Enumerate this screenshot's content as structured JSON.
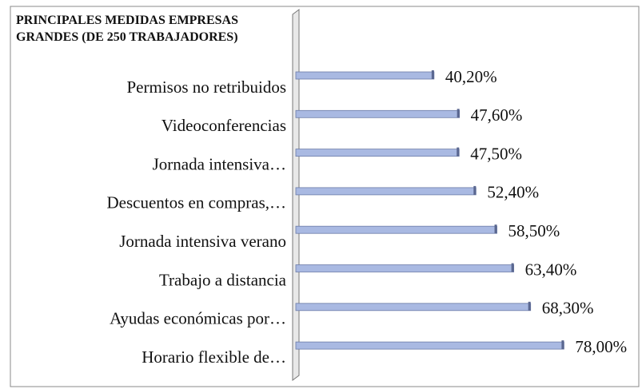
{
  "chart_data": {
    "type": "bar",
    "orientation": "horizontal",
    "title": [
      "PRINCIPALES MEDIDAS EMPRESAS",
      "GRANDES (DE 250 TRABAJADORES)"
    ],
    "categories": [
      "Permisos no retribuidos",
      "Videoconferencias",
      "Jornada intensiva…",
      "Descuentos en compras,…",
      "Jornada intensiva verano",
      "Trabajo a distancia",
      "Ayudas económicas por…",
      "Horario flexible de…"
    ],
    "values": [
      40.2,
      47.6,
      47.5,
      52.4,
      58.5,
      63.4,
      68.3,
      78.0
    ],
    "value_labels": [
      "40,20%",
      "47,60%",
      "47,50%",
      "52,40%",
      "58,50%",
      "63,40%",
      "68,30%",
      "78,00%"
    ],
    "color": "#a9b9e2",
    "xlim": [
      0,
      100
    ]
  }
}
